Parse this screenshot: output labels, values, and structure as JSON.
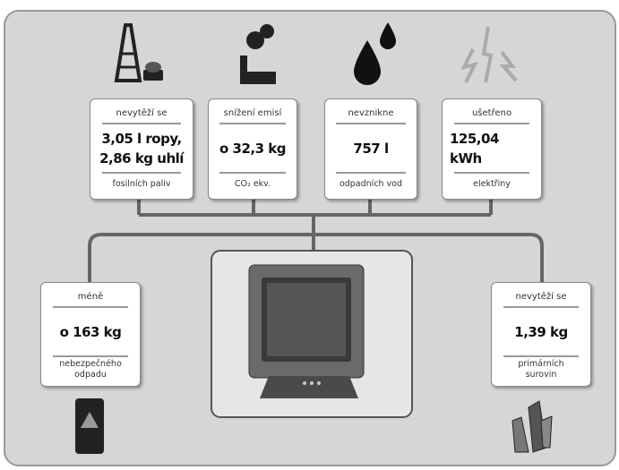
{
  "boxes": [
    {
      "top": "nevytěží se",
      "value": [
        "3,05 l ropy,",
        "2,86 kg uhlí"
      ],
      "bottom": [
        "fosilních paliv"
      ]
    },
    {
      "top": "snížení emisí",
      "value": [
        "o 32,3 kg"
      ],
      "bottom": [
        "CO₂ ekv."
      ]
    },
    {
      "top": "nevznikne",
      "value": [
        "757 l"
      ],
      "bottom": [
        "odpadních vod"
      ]
    },
    {
      "top": "ušetřeno",
      "value": [
        "125,04 kWh"
      ],
      "bottom": [
        "elektřiny"
      ]
    },
    {
      "top": "méně",
      "value": [
        "o 163 kg"
      ],
      "bottom": [
        "nebezpečného",
        "odpadu"
      ]
    },
    {
      "top": "nevytěží se",
      "value": [
        "1,39 kg"
      ],
      "bottom": [
        "primárních",
        "surovin"
      ]
    }
  ]
}
